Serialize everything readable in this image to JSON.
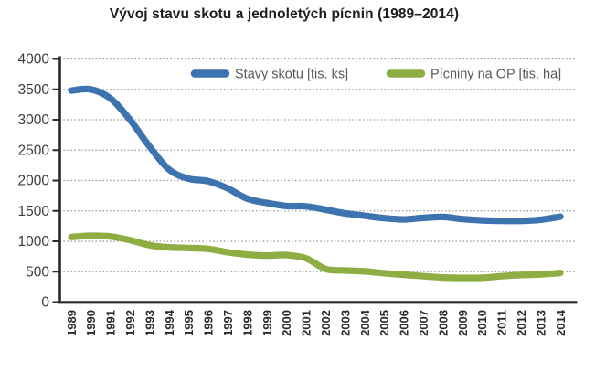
{
  "chart_data": {
    "type": "line",
    "title": "Vývoj stavu skotu a jednoletých pícnin (1989–2014)",
    "categories": [
      "1989",
      "1990",
      "1991",
      "1992",
      "1993",
      "1994",
      "1995",
      "1996",
      "1997",
      "1998",
      "1999",
      "2000",
      "2001",
      "2002",
      "2003",
      "2004",
      "2005",
      "2006",
      "2007",
      "2008",
      "2009",
      "2010",
      "2011",
      "2012",
      "2013",
      "2014"
    ],
    "series": [
      {
        "name": "Stavy skotu [tis. ks]",
        "color": "#3d74b0",
        "values": [
          3480,
          3500,
          3350,
          3000,
          2560,
          2180,
          2030,
          1990,
          1870,
          1700,
          1630,
          1580,
          1575,
          1520,
          1460,
          1420,
          1380,
          1360,
          1385,
          1400,
          1365,
          1345,
          1335,
          1335,
          1355,
          1405
        ]
      },
      {
        "name": "Pícniny na OP [tis. ha]",
        "color": "#8ead43",
        "values": [
          1070,
          1090,
          1080,
          1020,
          935,
          900,
          890,
          875,
          820,
          780,
          765,
          775,
          720,
          545,
          520,
          505,
          475,
          450,
          425,
          405,
          398,
          400,
          425,
          445,
          455,
          480
        ]
      }
    ],
    "xlabel": "",
    "ylabel": "",
    "ylim": [
      0,
      4000
    ],
    "ytick_step": 500,
    "ytick_labels": [
      "0",
      "500",
      "1000",
      "1500",
      "2000",
      "2500",
      "3000",
      "3500",
      "4000"
    ],
    "grid": "horizontal-dotted",
    "legend_position": "top-center-inside",
    "legend": [
      {
        "label": "Stavy skotu [tis. ks]",
        "color": "#3d74b0"
      },
      {
        "label": "Pícniny na OP [tis. ha]",
        "color": "#8ead43"
      }
    ],
    "colors": {
      "axis": "#2a2a2a",
      "gridline": "#9b9b9b",
      "tick_label": "#3d3d3d",
      "legend_text": "#595959",
      "title_text": "#1d1d1d",
      "background": "#ffffff"
    }
  }
}
